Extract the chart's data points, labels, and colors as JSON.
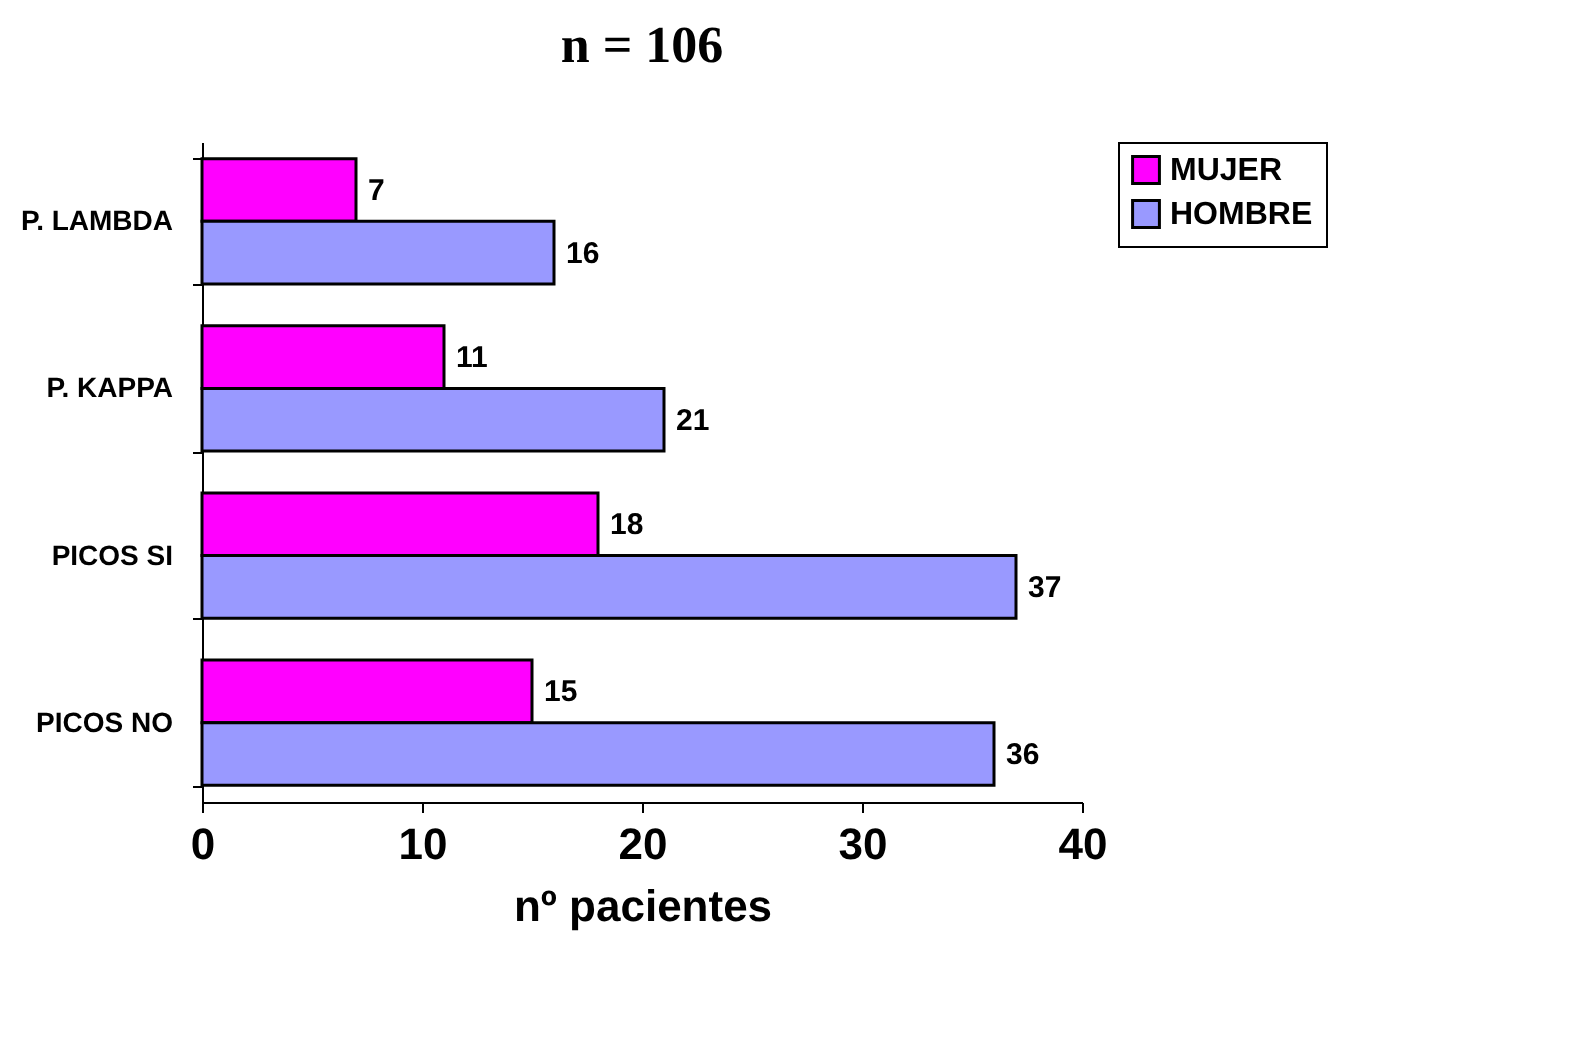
{
  "chart_data": {
    "type": "bar",
    "orientation": "horizontal",
    "title": "n = 106",
    "xlabel": "nº pacientes",
    "categories": [
      "P. LAMBDA",
      "P. KAPPA",
      "PICOS SI",
      "PICOS NO"
    ],
    "series": [
      {
        "name": "MUJER",
        "color": "#ff00ff",
        "values": [
          7,
          11,
          18,
          15
        ]
      },
      {
        "name": "HOMBRE",
        "color": "#9999ff",
        "values": [
          16,
          21,
          37,
          36
        ]
      }
    ],
    "xlim": [
      0,
      40
    ],
    "xticks": [
      0,
      10,
      20,
      30,
      40
    ],
    "grid": false,
    "legend": "right",
    "data_labels": true
  }
}
